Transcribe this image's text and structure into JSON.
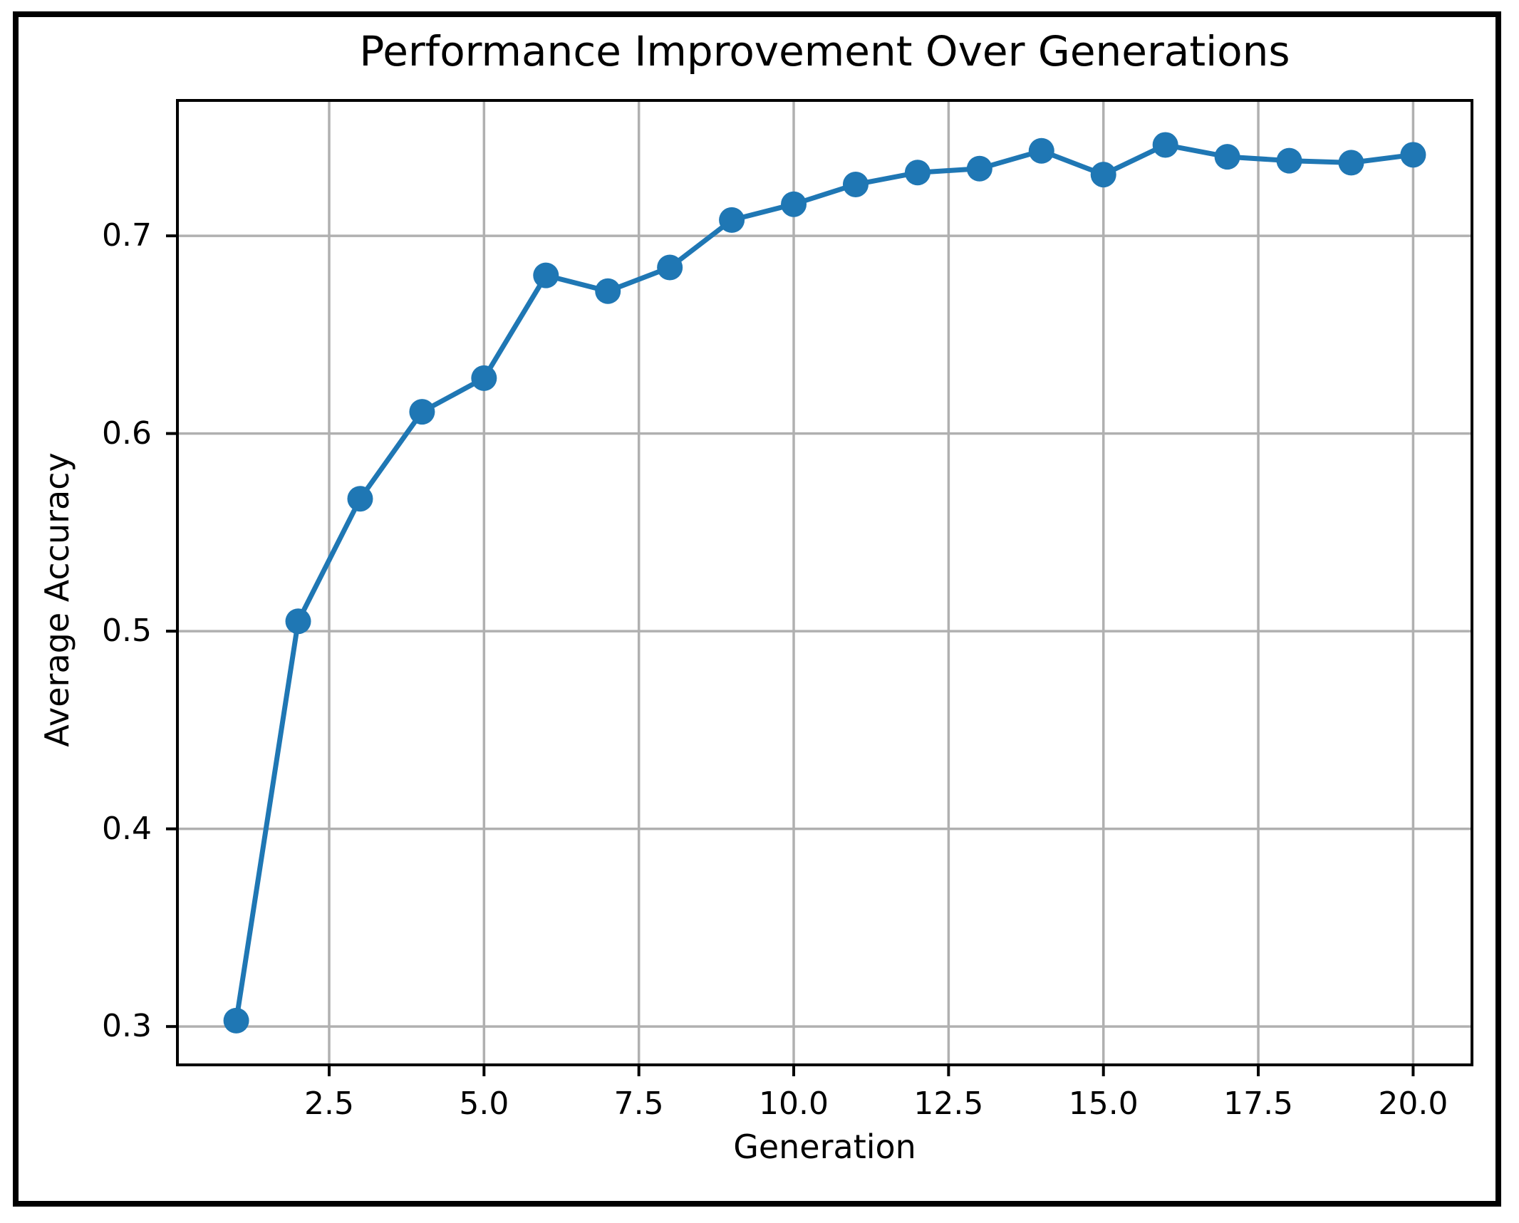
{
  "figure": {
    "title": "Performance Improvement Over Generations",
    "xlabel": "Generation",
    "ylabel": "Average Accuracy"
  },
  "chart_data": {
    "type": "line",
    "title": "Performance Improvement Over Generations",
    "xlabel": "Generation",
    "ylabel": "Average Accuracy",
    "x": [
      1,
      2,
      3,
      4,
      5,
      6,
      7,
      8,
      9,
      10,
      11,
      12,
      13,
      14,
      15,
      16,
      17,
      18,
      19,
      20
    ],
    "y": [
      0.303,
      0.505,
      0.567,
      0.611,
      0.628,
      0.68,
      0.672,
      0.684,
      0.708,
      0.716,
      0.726,
      0.732,
      0.734,
      0.743,
      0.731,
      0.746,
      0.74,
      0.738,
      0.737,
      0.741
    ],
    "x_ticks": [
      2.5,
      5.0,
      7.5,
      10.0,
      12.5,
      15.0,
      17.5,
      20.0
    ],
    "x_tick_labels": [
      "2.5",
      "5.0",
      "7.5",
      "10.0",
      "12.5",
      "15.0",
      "17.5",
      "20.0"
    ],
    "y_ticks": [
      0.3,
      0.4,
      0.5,
      0.6,
      0.7
    ],
    "y_tick_labels": [
      "0.3",
      "0.4",
      "0.5",
      "0.6",
      "0.7"
    ],
    "xlim": [
      0.05,
      20.95
    ],
    "ylim": [
      0.2806,
      0.7685
    ],
    "grid": true,
    "legend": "none",
    "line_color": "#1f77b4",
    "marker": "circle",
    "colors": {
      "line": "#1f77b4",
      "grid": "#b0b0b0",
      "axis": "#000000",
      "background": "#ffffff",
      "frame_border": "#000000"
    }
  }
}
